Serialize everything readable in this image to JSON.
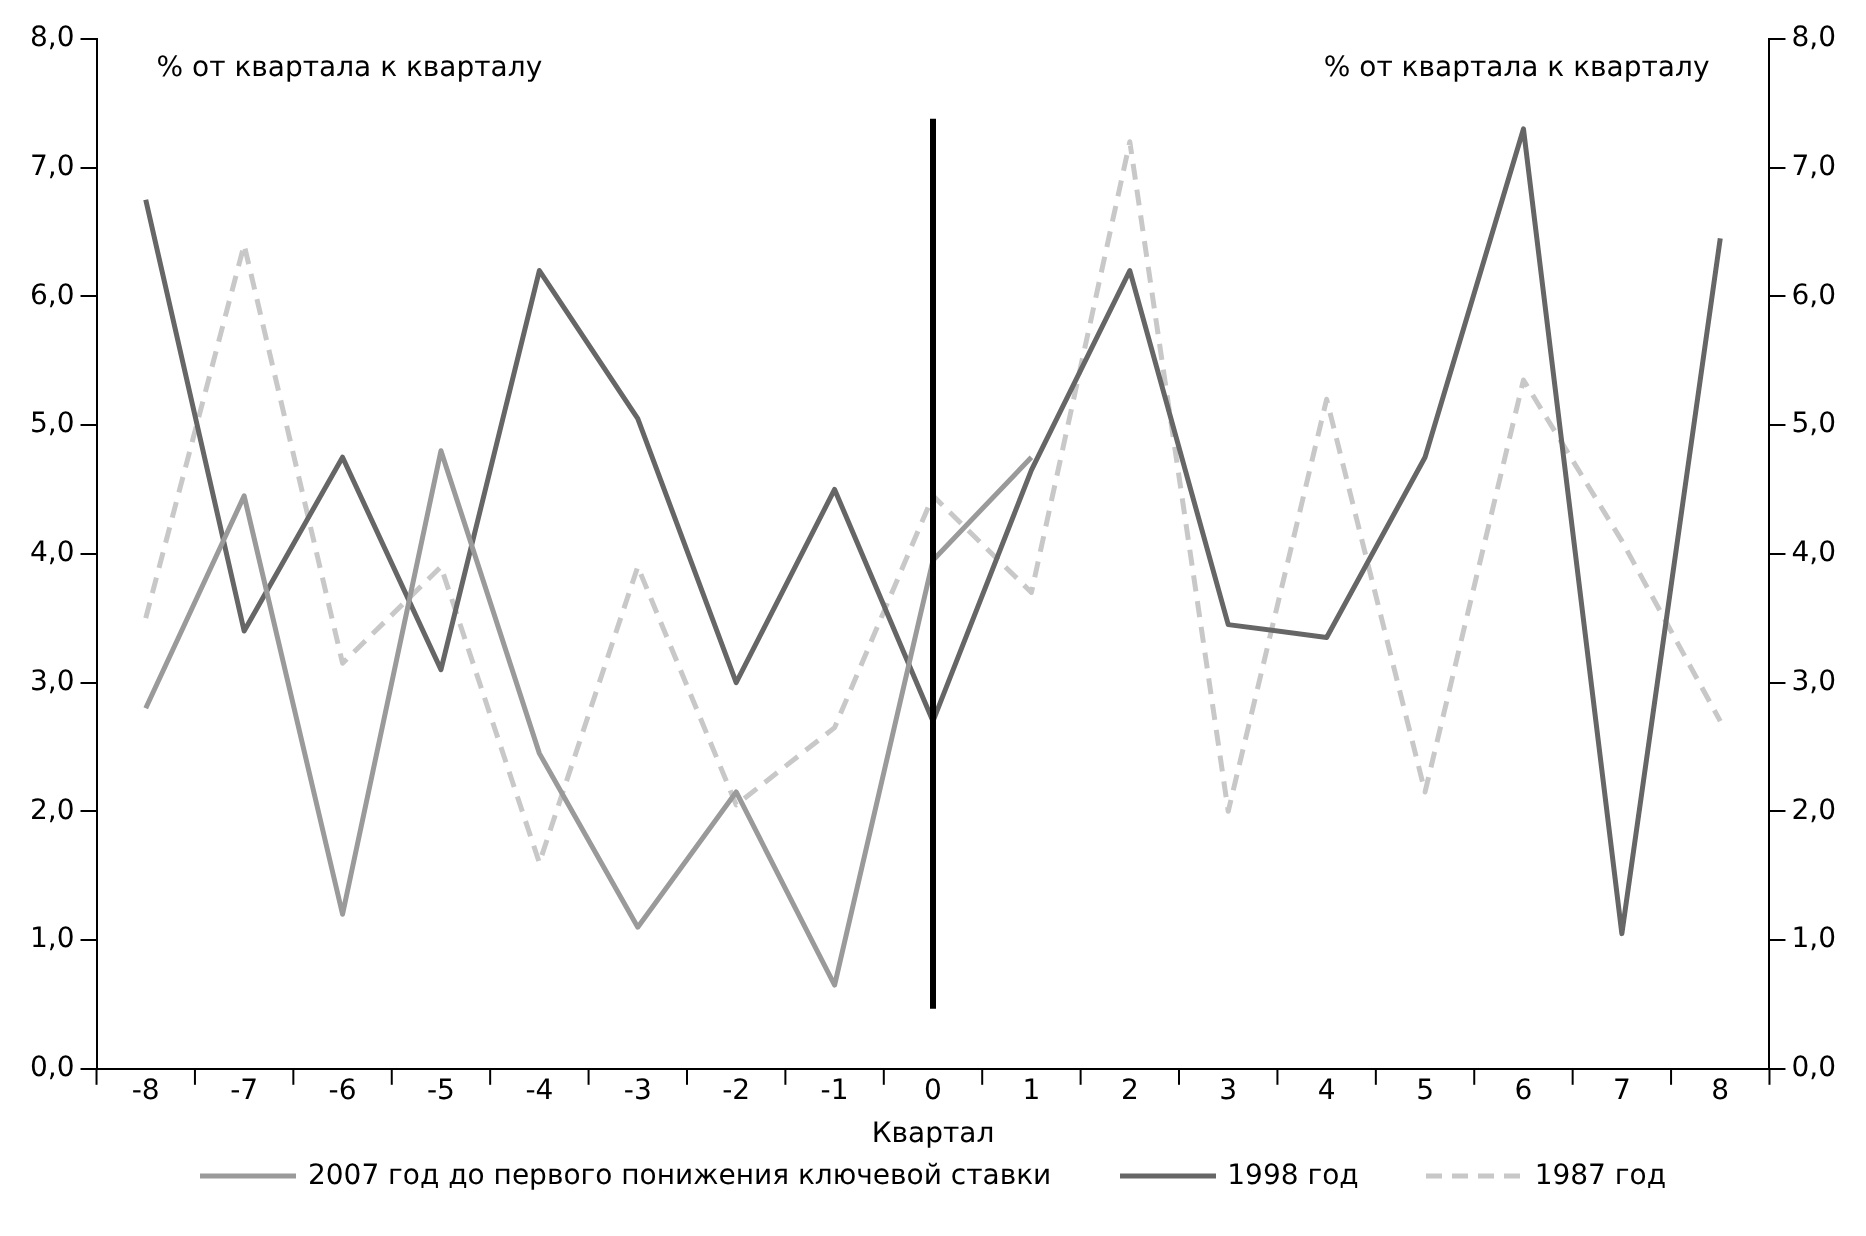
{
  "chart_data": {
    "type": "line",
    "xlabel": "Квартал",
    "ylabel": "% от квартала к кварталу",
    "y2label": "% от квартала к кварталу",
    "x": [
      -8,
      -7,
      -6,
      -5,
      -4,
      -3,
      -2,
      -1,
      0,
      1,
      2,
      3,
      4,
      5,
      6,
      7,
      8
    ],
    "xlim": [
      -8.5,
      8.5
    ],
    "xticks": [
      -8,
      -7,
      -6,
      -5,
      -4,
      -3,
      -2,
      -1,
      0,
      1,
      2,
      3,
      4,
      5,
      6,
      7,
      8
    ],
    "ylim": [
      0,
      8
    ],
    "yticks": [
      {
        "value": 0,
        "label": "0,0"
      },
      {
        "value": 1,
        "label": "1,0"
      },
      {
        "value": 2,
        "label": "2,0"
      },
      {
        "value": 3,
        "label": "3,0"
      },
      {
        "value": 4,
        "label": "4,0"
      },
      {
        "value": 5,
        "label": "5,0"
      },
      {
        "value": 6,
        "label": "6,0"
      },
      {
        "value": 7,
        "label": "7,0"
      },
      {
        "value": 8,
        "label": "8,0"
      }
    ],
    "y2lim": [
      0,
      8
    ],
    "y2ticks": [
      {
        "value": 0,
        "label": "0,0"
      },
      {
        "value": 1,
        "label": "1,0"
      },
      {
        "value": 2,
        "label": "2,0"
      },
      {
        "value": 3,
        "label": "3,0"
      },
      {
        "value": 4,
        "label": "4,0"
      },
      {
        "value": 5,
        "label": "5,0"
      },
      {
        "value": 6,
        "label": "6,0"
      },
      {
        "value": 7,
        "label": "7,0"
      },
      {
        "value": 8,
        "label": "8,0"
      }
    ],
    "grid": false,
    "legend": "bottom",
    "marker": "none",
    "series": [
      {
        "name": "2007 год до первого понижения ключевой ставки",
        "color": "#9a9a9a",
        "values": [
          2.8,
          4.45,
          1.2,
          4.8,
          2.45,
          1.1,
          2.15,
          0.65,
          3.95,
          4.75,
          null,
          null,
          null,
          null,
          null,
          null,
          null
        ]
      },
      {
        "name": "1998 год",
        "color": "#666666",
        "values": [
          6.75,
          3.4,
          4.75,
          3.1,
          6.2,
          5.05,
          3.0,
          4.5,
          2.7,
          4.65,
          6.2,
          3.45,
          3.35,
          4.75,
          7.3,
          1.05,
          6.45
        ]
      },
      {
        "name": "1987 год",
        "color": "#c8c8c8",
        "line_style": "dashed",
        "values": [
          3.5,
          6.4,
          3.15,
          3.9,
          1.6,
          3.9,
          2.05,
          2.65,
          4.45,
          3.7,
          7.2,
          2.0,
          5.2,
          2.15,
          5.35,
          4.1,
          2.7
        ]
      }
    ],
    "ref_lines": [
      {
        "axis": "x",
        "value": 0,
        "color": "#000000"
      }
    ]
  }
}
